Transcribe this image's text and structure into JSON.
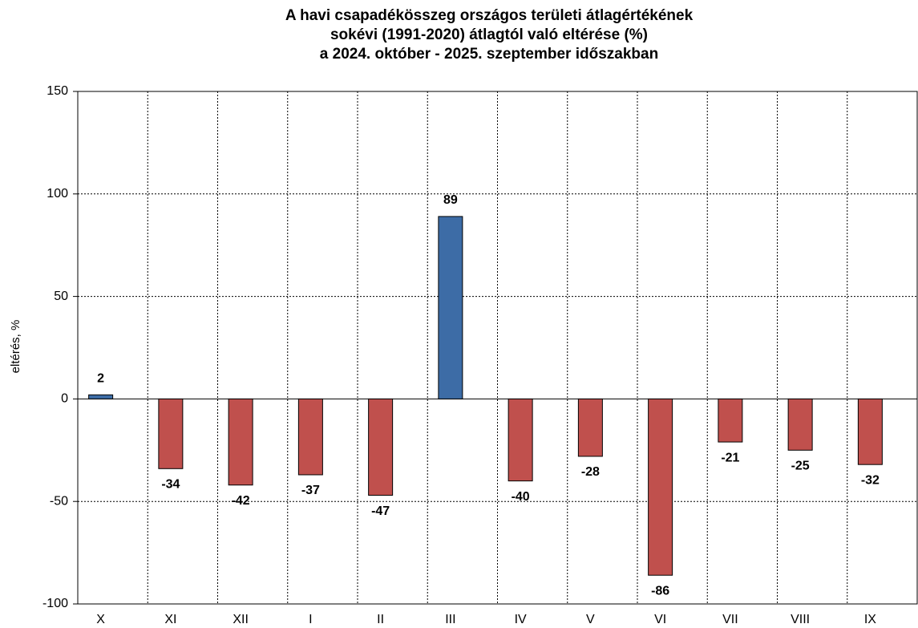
{
  "chart_data": {
    "type": "bar",
    "title": [
      "A havi csapadékösszeg országos területi átlagértékének",
      "sokévi (1991-2020) átlagtól való eltérése (%)",
      "a 2024. október - 2025. szeptember időszakban"
    ],
    "y_label": "eltérés, %",
    "categories": [
      "X",
      "XI",
      "XII",
      "I",
      "II",
      "III",
      "IV",
      "V",
      "VI",
      "VII",
      "VIII",
      "IX"
    ],
    "values": [
      2,
      -34,
      -42,
      -37,
      -47,
      89,
      -40,
      -28,
      -86,
      -21,
      -25,
      -32
    ],
    "positive_color": "#3d6ca6",
    "negative_color": "#c0504d",
    "ylim": [
      -100,
      150
    ],
    "yticks": [
      -100,
      -50,
      0,
      50,
      100,
      150
    ],
    "grid": true
  }
}
